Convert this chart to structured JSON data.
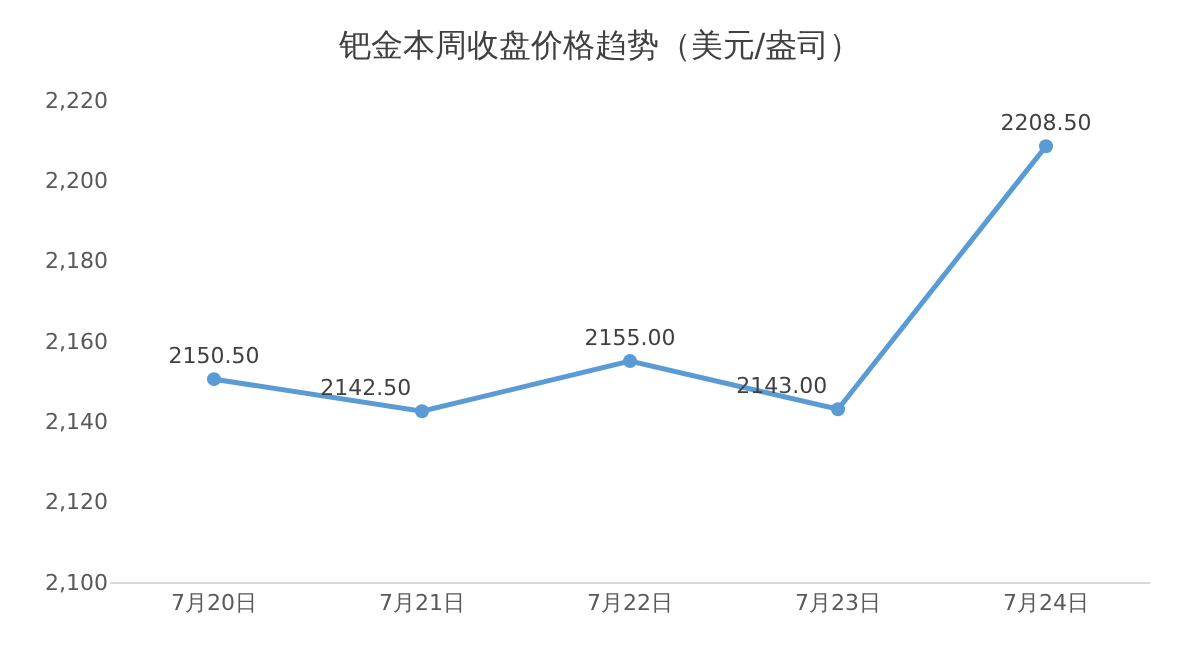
{
  "chart_data": {
    "type": "line",
    "title": "钯金本周收盘价格趋势（美元/盎司）",
    "categories": [
      "7月20日",
      "7月21日",
      "7月22日",
      "7月23日",
      "7月24日"
    ],
    "series": [
      {
        "color": "#5b9bd5",
        "values": [
          2150.5,
          2142.5,
          2155.0,
          2143.0,
          2208.5
        ],
        "value_labels": [
          "2150.50",
          "2142.50",
          "2155.00",
          "2143.00",
          "2208.50"
        ]
      }
    ],
    "ylim": [
      2100,
      2220
    ],
    "yticks": [
      {
        "value": 2100,
        "label": "2,100"
      },
      {
        "value": 2120,
        "label": "2,120"
      },
      {
        "value": 2140,
        "label": "2,140"
      },
      {
        "value": 2160,
        "label": "2,160"
      },
      {
        "value": 2180,
        "label": "2,180"
      },
      {
        "value": 2200,
        "label": "2,200"
      },
      {
        "value": 2220,
        "label": "2,220"
      }
    ],
    "grid": false,
    "marker": "circle",
    "line_style": "solid"
  }
}
